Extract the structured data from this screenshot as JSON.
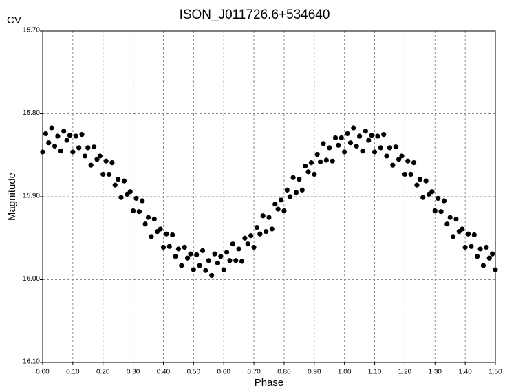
{
  "chart_data": {
    "type": "scatter",
    "title": "ISON_J011726.6+534640",
    "corner_label": "CV",
    "x_label": "Phase",
    "y_label": "Magnitude",
    "color": "#000000",
    "grid": true,
    "xlim": [
      0,
      1.5
    ],
    "xticks": [
      {
        "value": 0,
        "label": "0.00"
      },
      {
        "value": 0.1,
        "label": "0.10"
      },
      {
        "value": 0.2,
        "label": "0.20"
      },
      {
        "value": 0.3,
        "label": "0.30"
      },
      {
        "value": 0.4,
        "label": "0.40"
      },
      {
        "value": 0.5,
        "label": "0.50"
      },
      {
        "value": 0.6,
        "label": "0.60"
      },
      {
        "value": 0.7,
        "label": "0.70"
      },
      {
        "value": 0.8,
        "label": "0.80"
      },
      {
        "value": 0.9,
        "label": "0.90"
      },
      {
        "value": 1.0,
        "label": "1.00"
      },
      {
        "value": 1.1,
        "label": "1.10"
      },
      {
        "value": 1.2,
        "label": "1.20"
      },
      {
        "value": 1.3,
        "label": "1.30"
      },
      {
        "value": 1.4,
        "label": "1.40"
      },
      {
        "value": 1.5,
        "label": "1.50"
      }
    ],
    "ylim": [
      16.1,
      15.7
    ],
    "yticks": [
      {
        "value": 15.7,
        "label": "15.70"
      },
      {
        "value": 15.8,
        "label": "15.80"
      },
      {
        "value": 15.9,
        "label": "15.90"
      },
      {
        "value": 16.0,
        "label": "16.00"
      },
      {
        "value": 16.1,
        "label": "16.10"
      }
    ],
    "x": [
      0,
      0.01,
      0.02,
      0.03,
      0.04,
      0.05,
      0.06,
      0.07,
      0.08,
      0.09,
      0.1,
      0.11,
      0.12,
      0.13,
      0.14,
      0.15,
      0.16,
      0.17,
      0.18,
      0.19,
      0.2,
      0.21,
      0.22,
      0.23,
      0.24,
      0.25,
      0.26,
      0.27,
      0.28,
      0.29,
      0.3,
      0.31,
      0.32,
      0.33,
      0.34,
      0.35,
      0.36,
      0.37,
      0.38,
      0.39,
      0.4,
      0.41,
      0.42,
      0.43,
      0.44,
      0.45,
      0.46,
      0.47,
      0.48,
      0.49,
      0.5,
      0.51,
      0.52,
      0.53,
      0.54,
      0.55,
      0.56,
      0.57,
      0.58,
      0.59,
      0.6,
      0.61,
      0.62,
      0.63,
      0.64,
      0.65,
      0.66,
      0.67,
      0.68,
      0.69,
      0.7,
      0.71,
      0.72,
      0.73,
      0.74,
      0.75,
      0.76,
      0.77,
      0.78,
      0.79,
      0.8,
      0.81,
      0.82,
      0.83,
      0.84,
      0.85,
      0.86,
      0.87,
      0.88,
      0.89,
      0.9,
      0.91,
      0.92,
      0.93,
      0.94,
      0.95,
      0.96,
      0.97,
      0.98,
      0.99,
      1.0,
      1.01,
      1.02,
      1.03,
      1.04,
      1.05,
      1.06,
      1.07,
      1.08,
      1.09,
      1.1,
      1.11,
      1.12,
      1.13,
      1.14,
      1.15,
      1.16,
      1.17,
      1.18,
      1.19,
      1.2,
      1.21,
      1.22,
      1.23,
      1.24,
      1.25,
      1.26,
      1.27,
      1.28,
      1.29,
      1.3,
      1.31,
      1.32,
      1.33,
      1.34,
      1.35,
      1.36,
      1.37,
      1.38,
      1.39,
      1.4,
      1.41,
      1.42,
      1.43,
      1.44,
      1.45,
      1.46,
      1.47,
      1.48,
      1.49,
      1.5
    ],
    "values": [
      15.846,
      15.824,
      15.835,
      15.817,
      15.839,
      15.827,
      15.845,
      15.821,
      15.832,
      15.826,
      15.846,
      15.827,
      15.841,
      15.825,
      15.851,
      15.841,
      15.862,
      15.84,
      15.855,
      15.851,
      15.873,
      15.857,
      15.873,
      15.859,
      15.886,
      15.879,
      15.901,
      15.881,
      15.897,
      15.894,
      15.917,
      15.902,
      15.918,
      15.905,
      15.933,
      15.925,
      15.948,
      15.927,
      15.942,
      15.939,
      15.961,
      15.945,
      15.96,
      15.946,
      15.972,
      15.963,
      15.983,
      15.961,
      15.974,
      15.969,
      15.988,
      15.97,
      15.983,
      15.965,
      15.989,
      15.977,
      15.995,
      15.969,
      15.98,
      15.972,
      15.988,
      15.967,
      15.977,
      15.957,
      15.977,
      15.963,
      15.978,
      15.95,
      15.957,
      15.947,
      15.961,
      15.937,
      15.945,
      15.923,
      15.942,
      15.925,
      15.939,
      15.909,
      15.915,
      15.904,
      15.917,
      15.892,
      15.9,
      15.877,
      15.895,
      15.879,
      15.892,
      15.863,
      15.87,
      15.859,
      15.873,
      15.849,
      15.858,
      15.836,
      15.856,
      15.841,
      15.857,
      15.829,
      15.838,
      15.829,
      15.846,
      15.824,
      15.835,
      15.817,
      15.839,
      15.827,
      15.845,
      15.821,
      15.832,
      15.826,
      15.846,
      15.827,
      15.841,
      15.825,
      15.851,
      15.841,
      15.862,
      15.84,
      15.855,
      15.851,
      15.873,
      15.857,
      15.873,
      15.859,
      15.886,
      15.879,
      15.901,
      15.881,
      15.897,
      15.894,
      15.917,
      15.902,
      15.918,
      15.905,
      15.933,
      15.925,
      15.948,
      15.927,
      15.942,
      15.939,
      15.961,
      15.945,
      15.96,
      15.946,
      15.972,
      15.963,
      15.983,
      15.961,
      15.974,
      15.969,
      15.988
    ]
  }
}
